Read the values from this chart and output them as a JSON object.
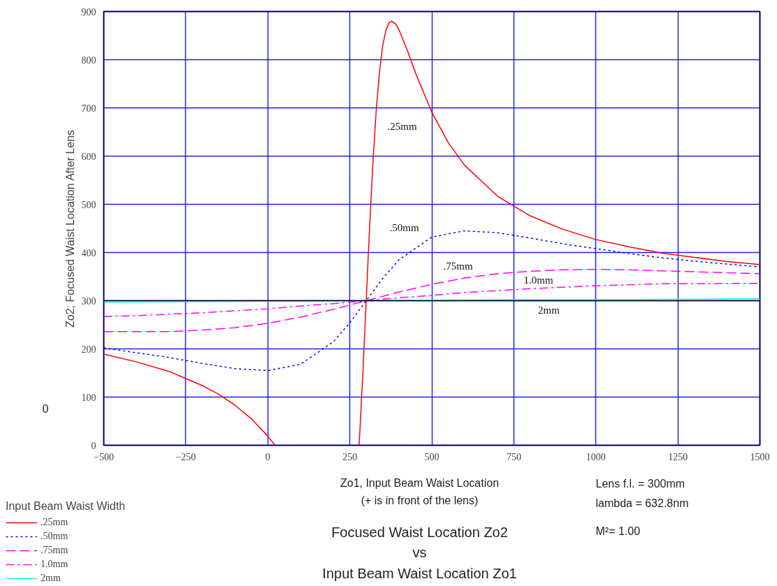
{
  "chart_data": {
    "type": "line",
    "title": "Focused Waist Location Zo2\nvs\nInput Beam Waist Location Zo1",
    "xlabel": "Zo1, Input Beam Waist Location\n(+ is in front of the lens)",
    "ylabel": "Zo2, Focused Waist Location After Lens",
    "legend_title": "Input Beam Waist Width",
    "xlim": [
      -500,
      1500
    ],
    "xticks": [
      -500,
      -250,
      0,
      250,
      500,
      750,
      1000,
      1250,
      1500
    ],
    "ylim": [
      0,
      900
    ],
    "yticks": [
      0,
      100,
      200,
      300,
      400,
      500,
      600,
      700,
      800,
      900
    ],
    "grid": true,
    "legend": "bottom left",
    "ref_lines": [
      {
        "axis": "y",
        "value": 300,
        "color": "#000000"
      }
    ],
    "series": [
      {
        "name": ".25mm",
        "color": "#ff0000",
        "line_style": "solid",
        "x": [
          -500,
          -400,
          -300,
          -200,
          -150,
          -100,
          -50,
          0,
          22,
          150,
          278,
          280,
          290,
          300,
          310,
          320,
          330,
          340,
          350,
          360,
          370,
          378,
          390,
          400,
          425,
          450,
          500,
          550,
          600,
          700,
          800,
          900,
          1000,
          1100,
          1200,
          1300,
          1400,
          1500
        ],
        "values": [
          189,
          173,
          153,
          124,
          106,
          83,
          55,
          19,
          0,
          null,
          0,
          20,
          153,
          300,
          447,
          580,
          690,
          772,
          828,
          861,
          877,
          880,
          874,
          862,
          820,
          773,
          691,
          628,
          581,
          517,
          476,
          448,
          427,
          412,
          399,
          390,
          381,
          375
        ]
      },
      {
        "name": ".50mm",
        "color": "#0000ff",
        "line_style": "dotted",
        "x": [
          -500,
          -400,
          -300,
          -200,
          -100,
          0,
          100,
          200,
          250,
          300,
          350,
          400,
          500,
          600,
          700,
          800,
          900,
          1000,
          1100,
          1200,
          1300,
          1400,
          1500
        ],
        "values": [
          202,
          192,
          182,
          170,
          159,
          155,
          168,
          215,
          254,
          300,
          346,
          385,
          432,
          445,
          441,
          430,
          418,
          408,
          398,
          389,
          382,
          376,
          370
        ]
      },
      {
        "name": ".75mm",
        "color": "#ff00ff",
        "line_style": "dashed",
        "x": [
          -500,
          -400,
          -300,
          -200,
          -100,
          0,
          100,
          200,
          300,
          400,
          500,
          600,
          700,
          800,
          900,
          1000,
          1100,
          1200,
          1300,
          1400,
          1500
        ],
        "values": [
          236,
          236,
          236,
          239,
          244,
          253,
          266,
          282,
          300,
          318,
          334,
          347,
          356,
          361,
          364,
          365,
          364,
          362,
          360,
          358,
          356
        ]
      },
      {
        "name": "1.0mm",
        "color": "#ff00ff",
        "line_style": "dashdot",
        "x": [
          -500,
          -400,
          -300,
          -200,
          -100,
          0,
          100,
          200,
          300,
          400,
          500,
          600,
          700,
          800,
          900,
          1000,
          1100,
          1200,
          1300,
          1400,
          1500
        ],
        "values": [
          267,
          269,
          272,
          275,
          279,
          283,
          289,
          294,
          300,
          306,
          311,
          317,
          321,
          325,
          328,
          331,
          333,
          335,
          335,
          336,
          336
        ]
      },
      {
        "name": "2mm",
        "color": "#00ffff",
        "line_style": "solid",
        "x": [
          -500,
          -250,
          0,
          250,
          500,
          750,
          1000,
          1250,
          1500
        ],
        "values": [
          297,
          298,
          299,
          300,
          301,
          302,
          302,
          303,
          304
        ]
      }
    ],
    "annotations": [
      ".25mm",
      ".50mm",
      ".75mm",
      "1.0mm",
      "2mm",
      "0",
      "Lens f.l. = 300mm",
      "lambda = 632.8nm",
      "M²= 1.00"
    ]
  }
}
